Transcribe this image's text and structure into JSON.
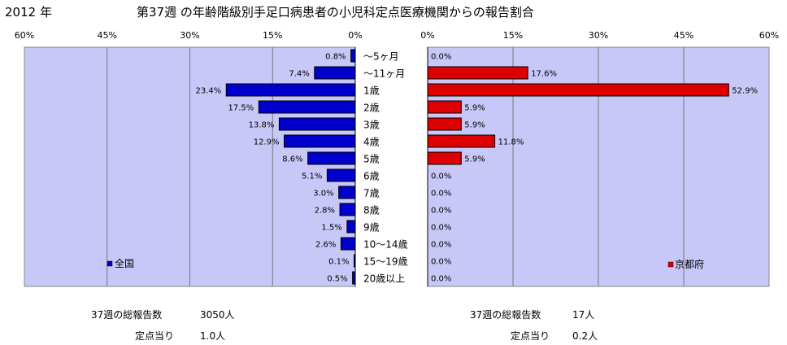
{
  "header": {
    "year": "2012 年",
    "title": "第37週 の年齢階級別手足口病患者の小児科定点医療機関からの報告割合"
  },
  "chart_data": {
    "type": "bar",
    "categories": [
      "～5ヶ月",
      "～11ヶ月",
      "1歳",
      "2歳",
      "3歳",
      "4歳",
      "5歳",
      "6歳",
      "7歳",
      "8歳",
      "9歳",
      "10～14歳",
      "15～19歳",
      "20歳以上"
    ],
    "xlim": [
      0,
      60
    ],
    "ticks": [
      0,
      15,
      30,
      45,
      60
    ],
    "grid": true,
    "series": [
      {
        "name": "全国",
        "direction": "left",
        "color": "#0000cc",
        "values": [
          0.8,
          7.4,
          23.4,
          17.5,
          13.8,
          12.9,
          8.6,
          5.1,
          3.0,
          2.8,
          1.5,
          2.6,
          0.1,
          0.5
        ],
        "labels": [
          "0.8%",
          "7.4%",
          "23.4%",
          "17.5%",
          "13.8%",
          "12.9%",
          "8.6%",
          "5.1%",
          "3.0%",
          "2.8%",
          "1.5%",
          "2.6%",
          "0.1%",
          "0.5%"
        ],
        "legend": "bottom-left"
      },
      {
        "name": "京都府",
        "direction": "right",
        "color": "#dd0000",
        "values": [
          0.0,
          17.6,
          52.9,
          5.9,
          5.9,
          11.8,
          5.9,
          0.0,
          0.0,
          0.0,
          0.0,
          0.0,
          0.0,
          0.0
        ],
        "labels": [
          "0.0%",
          "17.6%",
          "52.9%",
          "5.9%",
          "5.9%",
          "11.8%",
          "5.9%",
          "0.0%",
          "0.0%",
          "0.0%",
          "0.0%",
          "0.0%",
          "0.0%",
          "0.0%"
        ],
        "legend": "bottom-right"
      }
    ],
    "plot_background": "#c8c8f8"
  },
  "tick_labels": [
    "60%",
    "45%",
    "30%",
    "15%",
    "0%"
  ],
  "tick_labels_right": [
    "0%",
    "15%",
    "30%",
    "45%",
    "60%"
  ],
  "footer": {
    "left": {
      "total_label": "37週の総報告数",
      "total_value": "3050人",
      "per_label": "定点当り",
      "per_value": "1.0人"
    },
    "right": {
      "total_label": "37週の総報告数",
      "total_value": "17人",
      "per_label": "定点当り",
      "per_value": "0.2人"
    }
  }
}
